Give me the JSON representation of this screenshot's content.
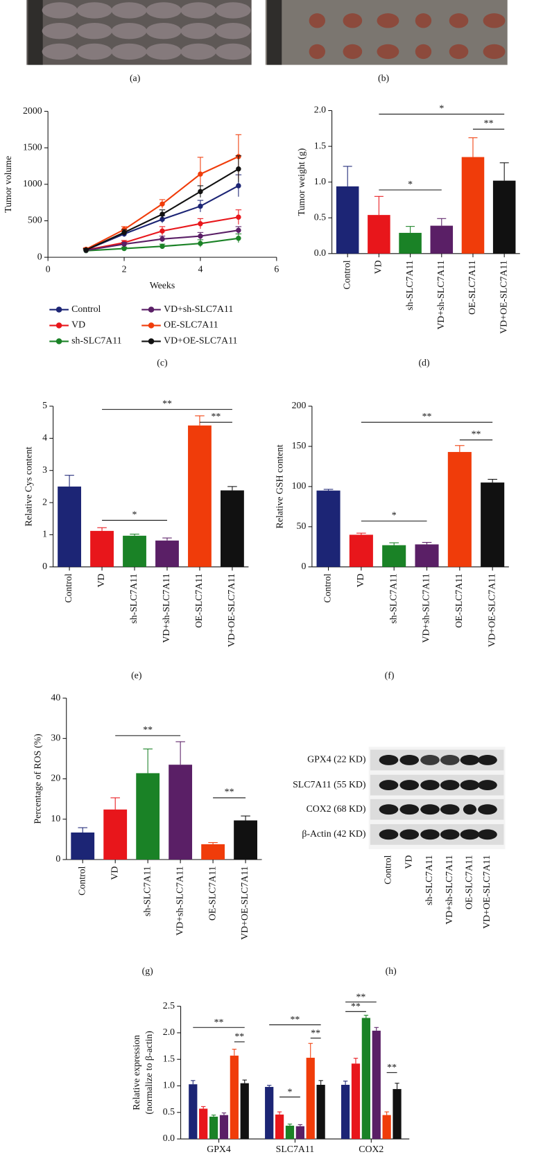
{
  "chart_data": [
    {
      "type": "image",
      "label": "(a)"
    },
    {
      "type": "image",
      "label": "(b)"
    },
    {
      "type": "line",
      "label": "(c)",
      "xlabel": "Weeks",
      "ylabel": "Tumor volume",
      "x": [
        1,
        2,
        3,
        4,
        5
      ],
      "xlim": [
        0,
        6
      ],
      "xticks": [
        0,
        2,
        4,
        6
      ],
      "ylim": [
        0,
        2000
      ],
      "yticks": [
        0,
        500,
        1000,
        1500,
        2000
      ],
      "legend": "bottom",
      "series": [
        {
          "name": "Control",
          "color": "#1c2575",
          "values": [
            100,
            320,
            520,
            700,
            980
          ],
          "errors": [
            20,
            40,
            50,
            80,
            150
          ]
        },
        {
          "name": "VD",
          "color": "#e8161b",
          "values": [
            100,
            200,
            360,
            460,
            550
          ],
          "errors": [
            15,
            30,
            60,
            70,
            100
          ]
        },
        {
          "name": "sh-SLC7A11",
          "color": "#1a8226",
          "values": [
            90,
            120,
            150,
            190,
            260
          ],
          "errors": [
            10,
            20,
            30,
            50,
            60
          ]
        },
        {
          "name": "VD+sh-SLC7A11",
          "color": "#5a1f66",
          "values": [
            95,
            180,
            250,
            290,
            370
          ],
          "errors": [
            15,
            25,
            40,
            50,
            50
          ]
        },
        {
          "name": "OE-SLC7A11",
          "color": "#f03c0a",
          "values": [
            110,
            380,
            730,
            1140,
            1380
          ],
          "errors": [
            20,
            40,
            60,
            230,
            300
          ]
        },
        {
          "name": "VD+OE-SLC7A11",
          "color": "#111111",
          "values": [
            100,
            340,
            590,
            900,
            1210
          ],
          "errors": [
            20,
            40,
            60,
            80,
            180
          ]
        }
      ]
    },
    {
      "type": "bar",
      "label": "(d)",
      "ylabel": "Tumor weight (g)",
      "categories": [
        "Control",
        "VD",
        "sh-SLC7A11",
        "VD+sh-SLC7A11",
        "OE-SLC7A11",
        "VD+OE-SLC7A11"
      ],
      "colors": [
        "#1c2575",
        "#e8161b",
        "#1a8226",
        "#5a1f66",
        "#f03c0a",
        "#111111"
      ],
      "values": [
        0.94,
        0.54,
        0.29,
        0.39,
        1.35,
        1.02
      ],
      "errors": [
        0.28,
        0.26,
        0.09,
        0.1,
        0.27,
        0.25
      ],
      "ylim": [
        0,
        2
      ],
      "yticks": [
        {
          "value": 0,
          "label": "0.0"
        },
        0.5,
        {
          "value": 1,
          "label": "1.0"
        },
        1.5,
        {
          "value": 2,
          "label": "2.0"
        }
      ],
      "annotations": [
        {
          "text": "*",
          "from": 1,
          "to": 5,
          "y": 1.95
        },
        {
          "text": "**",
          "from": 4,
          "to": 5,
          "y": 1.74
        },
        {
          "text": "*",
          "from": 1,
          "to": 3,
          "y": 0.89
        }
      ]
    },
    {
      "type": "bar",
      "label": "(e)",
      "ylabel": "Relative Cys content",
      "categories": [
        "Control",
        "VD",
        "sh-SLC7A11",
        "VD+sh-SLC7A11",
        "OE-SLC7A11",
        "VD+OE-SLC7A11"
      ],
      "colors": [
        "#1c2575",
        "#e8161b",
        "#1a8226",
        "#5a1f66",
        "#f03c0a",
        "#111111"
      ],
      "values": [
        2.5,
        1.12,
        0.97,
        0.82,
        4.4,
        2.38
      ],
      "errors": [
        0.35,
        0.1,
        0.05,
        0.08,
        0.3,
        0.12
      ],
      "ylim": [
        0,
        5
      ],
      "yticks": [
        0,
        1,
        2,
        3,
        4,
        5
      ],
      "annotations": [
        {
          "text": "**",
          "from": 1,
          "to": 5,
          "y": 4.9
        },
        {
          "text": "**",
          "from": 4,
          "to": 5,
          "y": 4.5
        },
        {
          "text": "*",
          "from": 1,
          "to": 3,
          "y": 1.45
        }
      ]
    },
    {
      "type": "bar",
      "label": "(f)",
      "ylabel": "Relative GSH content",
      "categories": [
        "Control",
        "VD",
        "sh-SLC7A11",
        "VD+sh-SLC7A11",
        "OE-SLC7A11",
        "VD+OE-SLC7A11"
      ],
      "colors": [
        "#1c2575",
        "#e8161b",
        "#1a8226",
        "#5a1f66",
        "#f03c0a",
        "#111111"
      ],
      "values": [
        95,
        40,
        27,
        28,
        143,
        105
      ],
      "errors": [
        1.5,
        2,
        3,
        2.5,
        8,
        4
      ],
      "ylim": [
        0,
        200
      ],
      "yticks": [
        0,
        50,
        100,
        150,
        200
      ],
      "annotations": [
        {
          "text": "**",
          "from": 1,
          "to": 5,
          "y": 180
        },
        {
          "text": "**",
          "from": 4,
          "to": 5,
          "y": 158
        },
        {
          "text": "*",
          "from": 1,
          "to": 3,
          "y": 57
        }
      ]
    },
    {
      "type": "bar",
      "label": "(g)",
      "ylabel": "Percentage of ROS (%)",
      "categories": [
        "Control",
        "VD",
        "sh-SLC7A11",
        "VD+sh-SLC7A11",
        "OE-SLC7A11",
        "VD+OE-SLC7A11"
      ],
      "colors": [
        "#1c2575",
        "#e8161b",
        "#1a8226",
        "#5a1f66",
        "#f03c0a",
        "#111111"
      ],
      "values": [
        6.7,
        12.4,
        21.4,
        23.5,
        3.8,
        9.7
      ],
      "errors": [
        1.2,
        2.9,
        6,
        5.7,
        0.4,
        1.1
      ],
      "ylim": [
        0,
        40
      ],
      "yticks": [
        0,
        10,
        20,
        30,
        40
      ],
      "annotations": [
        {
          "text": "**",
          "from": 1,
          "to": 3,
          "y": 30.7
        },
        {
          "text": "**",
          "from": 4,
          "to": 5,
          "y": 15.3
        }
      ]
    },
    {
      "type": "blot",
      "label": "(h)",
      "rows": [
        "GPX4 (22 KD)",
        "SLC7A11 (55 KD)",
        "COX2 (68 KD)",
        "β-Actin (42 KD)"
      ],
      "categories": [
        "Control",
        "VD",
        "sh-SLC7A11",
        "VD+sh-SLC7A11",
        "OE-SLC7A11",
        "VD+OE-SLC7A11"
      ]
    },
    {
      "type": "grouped_bar",
      "ylabel": [
        "Relative expression",
        "(normalize to β-actin)"
      ],
      "categories": [
        "GPX4",
        "SLC7A11",
        "COX2"
      ],
      "ylim": [
        0,
        2.5
      ],
      "yticks": [
        {
          "value": 0,
          "label": "0.0"
        },
        0.5,
        {
          "value": 1,
          "label": "1.0"
        },
        1.5,
        {
          "value": 2,
          "label": "2.0"
        },
        2.5
      ],
      "series": [
        {
          "name": "Control",
          "color": "#1c2575",
          "values": [
            1.03,
            0.98,
            1.02
          ],
          "errors": [
            0.07,
            0.03,
            0.07
          ]
        },
        {
          "name": "VD",
          "color": "#e8161b",
          "values": [
            0.57,
            0.46,
            1.42
          ],
          "errors": [
            0.04,
            0.05,
            0.1
          ]
        },
        {
          "name": "sh-SLC7A11",
          "color": "#1a8226",
          "values": [
            0.42,
            0.25,
            2.28
          ],
          "errors": [
            0.03,
            0.03,
            0.05
          ]
        },
        {
          "name": "VD+sh-SLC7A11",
          "color": "#5a1f66",
          "values": [
            0.45,
            0.24,
            2.04
          ],
          "errors": [
            0.04,
            0.03,
            0.06
          ]
        },
        {
          "name": "OE-SLC7A11",
          "color": "#f03c0a",
          "values": [
            1.57,
            1.53,
            0.45
          ],
          "errors": [
            0.12,
            0.27,
            0.06
          ]
        },
        {
          "name": "VD+OE-SLC7A11",
          "color": "#111111",
          "values": [
            1.05,
            1.02,
            0.94
          ],
          "errors": [
            0.06,
            0.08,
            0.11
          ]
        }
      ],
      "annotations": [
        {
          "text": "**",
          "from": [
            0,
            0
          ],
          "to": [
            0,
            5
          ],
          "y": 2.1
        },
        {
          "text": "**",
          "from": [
            0,
            4
          ],
          "to": [
            0,
            5
          ],
          "y": 1.83
        },
        {
          "text": "**",
          "from": [
            1,
            0
          ],
          "to": [
            1,
            5
          ],
          "y": 2.15
        },
        {
          "text": "**",
          "from": [
            1,
            4
          ],
          "to": [
            1,
            5
          ],
          "y": 1.9
        },
        {
          "text": "*",
          "from": [
            1,
            1
          ],
          "to": [
            1,
            3
          ],
          "y": 0.79
        },
        {
          "text": "**",
          "from": [
            2,
            0
          ],
          "to": [
            2,
            3
          ],
          "y": 2.58
        },
        {
          "text": "**",
          "from": [
            2,
            0
          ],
          "to": [
            2,
            2
          ],
          "y": 2.4
        },
        {
          "text": "**",
          "from": [
            2,
            4
          ],
          "to": [
            2,
            5
          ],
          "y": 1.25
        }
      ]
    }
  ]
}
